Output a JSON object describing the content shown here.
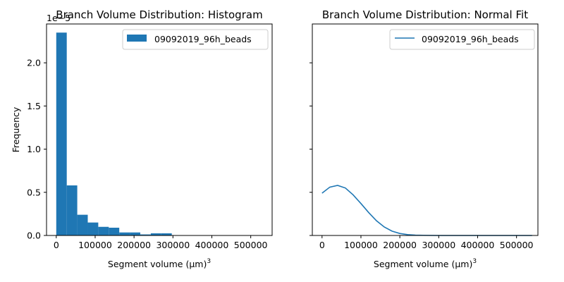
{
  "chart_data": [
    {
      "type": "bar",
      "title": "Branch Volume Distribution: Histogram",
      "xlabel": "Segment volume",
      "xlabel_unit": "(μm)",
      "xlabel_exponent": "3",
      "ylabel": "Frequency",
      "y_scale_note": "1e−5",
      "xlim": [
        -25000,
        555000
      ],
      "ylim": [
        0,
        2.45
      ],
      "xticks": [
        0,
        100000,
        200000,
        300000,
        400000,
        500000
      ],
      "xtick_labels": [
        "0",
        "100000",
        "200000",
        "300000",
        "400000",
        "500000"
      ],
      "yticks": [
        0,
        0.5,
        1.0,
        1.5,
        2.0
      ],
      "ytick_labels": [
        "0.0",
        "0.5",
        "1.0",
        "1.5",
        "2.0"
      ],
      "legend": {
        "location": "upper right"
      },
      "color": "#1f77b4",
      "bin_start": 0,
      "bin_width": 27000,
      "series": [
        {
          "name": "09092019_96h_beads",
          "values": [
            2.35,
            0.58,
            0.24,
            0.15,
            0.1,
            0.09,
            0.035,
            0.035,
            0.012,
            0.025,
            0.025,
            0.0,
            0.0,
            0.004,
            0.0,
            0.0,
            0.004,
            0.0,
            0.0,
            0.004
          ]
        }
      ]
    },
    {
      "type": "line",
      "title": "Branch Volume Distribution: Normal Fit",
      "xlabel": "Segment volume",
      "xlabel_unit": "(μm)",
      "xlabel_exponent": "3",
      "ylabel": "",
      "xlim": [
        -25000,
        555000
      ],
      "ylim": [
        0,
        2.45
      ],
      "xticks": [
        0,
        100000,
        200000,
        300000,
        400000,
        500000
      ],
      "xtick_labels": [
        "0",
        "100000",
        "200000",
        "300000",
        "400000",
        "500000"
      ],
      "yticks": [
        0,
        0.5,
        1.0,
        1.5,
        2.0
      ],
      "legend": {
        "location": "upper right"
      },
      "color": "#1f77b4",
      "series": [
        {
          "name": "09092019_96h_beads",
          "x": [
            0,
            20000,
            40000,
            60000,
            80000,
            100000,
            120000,
            140000,
            160000,
            180000,
            200000,
            220000,
            240000,
            260000,
            300000,
            350000,
            400000,
            450000,
            500000,
            540000
          ],
          "values": [
            0.49,
            0.56,
            0.58,
            0.55,
            0.47,
            0.37,
            0.265,
            0.17,
            0.098,
            0.05,
            0.023,
            0.01,
            0.004,
            0.002,
            0.0,
            0.0,
            0.0,
            0.0,
            0.0,
            0.0
          ]
        }
      ]
    }
  ]
}
